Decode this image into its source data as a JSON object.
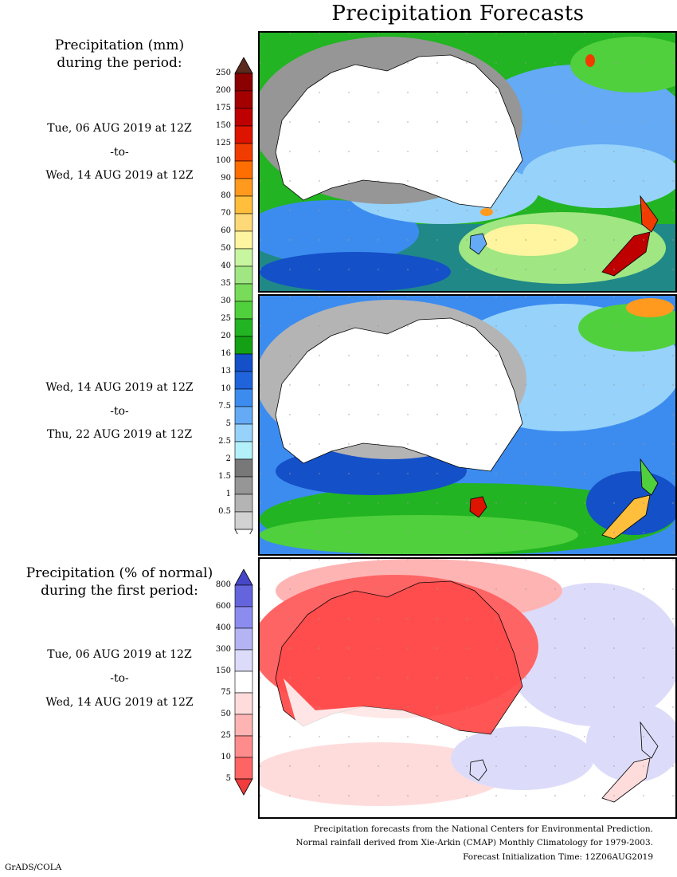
{
  "title": "Precipitation Forecasts",
  "sections": {
    "mm": {
      "heading_line1": "Precipitation (mm)",
      "heading_line2": "during the period:"
    },
    "pct": {
      "heading_line1": "Precipitation (% of normal)",
      "heading_line2": "during the first period:"
    }
  },
  "periods": [
    {
      "start": "Tue, 06 AUG 2019 at 12Z",
      "sep": "-to-",
      "end": "Wed, 14 AUG 2019 at 12Z"
    },
    {
      "start": "Wed, 14 AUG 2019 at 12Z",
      "sep": "-to-",
      "end": "Thu, 22 AUG 2019 at 12Z"
    },
    {
      "start": "Tue, 06 AUG 2019 at 12Z",
      "sep": "-to-",
      "end": "Wed, 14 AUG 2019 at 12Z"
    }
  ],
  "mm_scale": {
    "labels": [
      "250",
      "200",
      "175",
      "150",
      "125",
      "100",
      "90",
      "80",
      "70",
      "60",
      "50",
      "40",
      "35",
      "30",
      "25",
      "20",
      "16",
      "13",
      "10",
      "7.5",
      "5",
      "2.5",
      "2",
      "1.5",
      "1",
      "0.5"
    ],
    "colors": [
      "#5a2b1e",
      "#8b0000",
      "#a50000",
      "#be0000",
      "#dc1400",
      "#f03c00",
      "#ff6e00",
      "#ff9a1e",
      "#ffbe3c",
      "#ffd878",
      "#fff5a0",
      "#c8f5a0",
      "#a0e682",
      "#78dc5a",
      "#50d03c",
      "#22b422",
      "#14a014",
      "#1450c8",
      "#2064dc",
      "#3c8cf0",
      "#64aaf5",
      "#96d2fa",
      "#b4f0fa",
      "#787878",
      "#969696",
      "#b4b4b4",
      "#d2d2d2",
      "#ffffff"
    ]
  },
  "pct_scale": {
    "labels": [
      "800",
      "600",
      "400",
      "300",
      "150",
      "75",
      "50",
      "25",
      "10",
      "5"
    ],
    "colors": [
      "#4646c8",
      "#6464dc",
      "#8c8cf0",
      "#b4b4f5",
      "#dcdcfa",
      "#ffffff",
      "#ffdcdc",
      "#ffb4b4",
      "#ff8c8c",
      "#ff6464",
      "#f03c3c"
    ]
  },
  "footer": {
    "line1": "Precipitation forecasts from the National Centers for Environmental Prediction.",
    "line2": "Normal rainfall derived from Xie-Arkin (CMAP) Monthly Climatology for 1979-2003.",
    "line3": "Forecast Initialization Time: 12Z06AUG2019"
  },
  "credit": "GrADS/COLA"
}
